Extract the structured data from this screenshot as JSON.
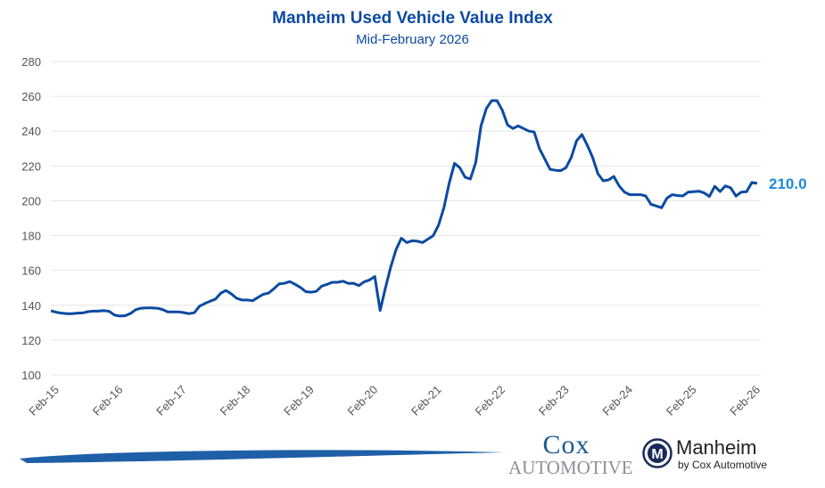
{
  "chart_data": {
    "type": "line",
    "title": "Manheim Used Vehicle Value Index",
    "subtitle": "Mid-February 2026",
    "x_start": "2015-02",
    "x_step": "month",
    "x_tick_labels": [
      "Feb-15",
      "Feb-16",
      "Feb-17",
      "Feb-18",
      "Feb-19",
      "Feb-20",
      "Feb-21",
      "Feb-22",
      "Feb-23",
      "Feb-24",
      "Feb-25",
      "Feb-26"
    ],
    "y_tick_labels": [
      "100",
      "120",
      "140",
      "160",
      "180",
      "200",
      "220",
      "240",
      "260",
      "280"
    ],
    "ylim": [
      100,
      280
    ],
    "grid": "horizontal",
    "line_color": "#0b4aa2",
    "end_label": "210.0",
    "end_label_color": "#1e88d8",
    "values": [
      136.8,
      136,
      135.5,
      135.2,
      135.2,
      135.5,
      135.6,
      136.3,
      136.6,
      136.6,
      136.9,
      136.5,
      134.3,
      133.8,
      134,
      135.3,
      137.5,
      138.3,
      138.5,
      138.5,
      138.3,
      137.6,
      136.2,
      136.2,
      136.2,
      135.8,
      135.2,
      135.7,
      139.5,
      141,
      142.3,
      143.5,
      147,
      148.5,
      146.5,
      144,
      143,
      143,
      142.6,
      144.5,
      146.3,
      147,
      149.5,
      152.3,
      152.6,
      153.6,
      152,
      150.2,
      147.8,
      147.5,
      148,
      151,
      152,
      153.2,
      153.2,
      153.8,
      152.5,
      152.6,
      151.3,
      153.5,
      154.5,
      156.5,
      137,
      150,
      162,
      172,
      178.5,
      176,
      177,
      176.8,
      176,
      178,
      180,
      186,
      196,
      210,
      221.5,
      219,
      213.5,
      212.5,
      222,
      243,
      253,
      257.5,
      257.5,
      252,
      243.5,
      241.5,
      243,
      241.5,
      240,
      239.5,
      230,
      224,
      218,
      217.5,
      217.3,
      219,
      225,
      234.5,
      238,
      232,
      225,
      215.5,
      211.5,
      212,
      214,
      208.5,
      205,
      203.5,
      203.5,
      203.5,
      202.8,
      198,
      197,
      196,
      201.5,
      203.5,
      203,
      202.8,
      205,
      205.2,
      205.5,
      204.5,
      202.5,
      208.3,
      205.3,
      208.5,
      207.5,
      202.7,
      205,
      205.2,
      210.5,
      210.0
    ]
  },
  "logos": {
    "cox_line1": "Cox",
    "cox_line2": "Automotive",
    "manheim_name": "Manheim",
    "manheim_tagline": "by Cox Automotive"
  }
}
